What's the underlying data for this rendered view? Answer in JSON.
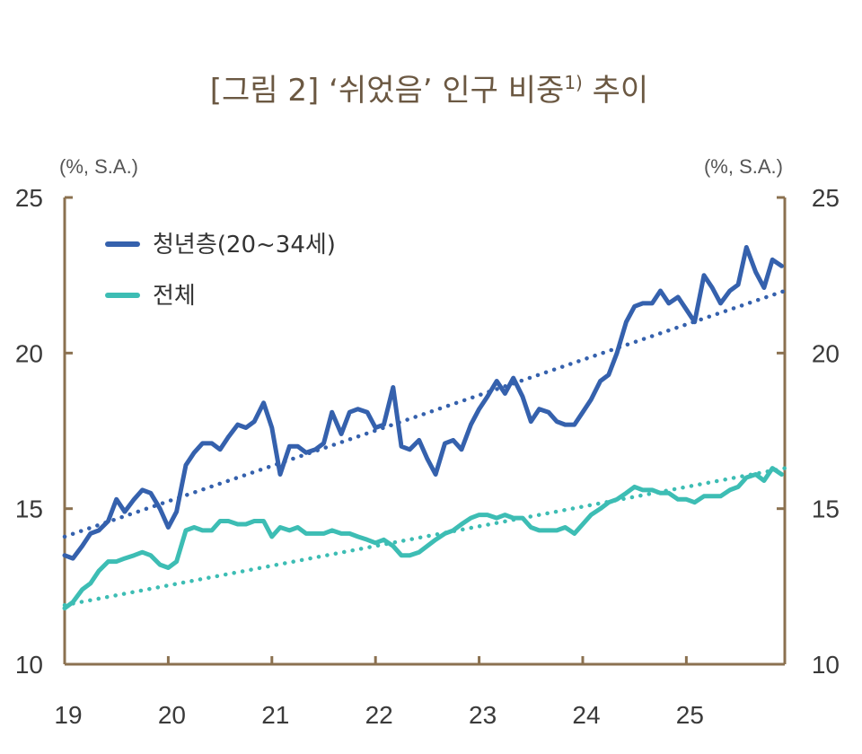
{
  "colors": {
    "title": "#6b5842",
    "axis": "#8b7150",
    "youth": "#3561ad",
    "total": "#3dbdb4",
    "text": "#3a3a3a"
  },
  "chart_data": {
    "type": "line",
    "title": "[그림 2] ‘쉬었음’ 인구 비중",
    "title_sup": "1)",
    "title_suffix": " 추이",
    "left_unit": "(%, S.A.)",
    "right_unit": "(%, S.A.)",
    "ylim": [
      10,
      25
    ],
    "y_ticks": [
      "10",
      "15",
      "20",
      "25"
    ],
    "y_ticks_right": [
      "10",
      "15",
      "20",
      "25"
    ],
    "x_range": [
      2019.0,
      2025.95
    ],
    "x_ticks": [
      {
        "x": 2019,
        "label": "19"
      },
      {
        "x": 2020,
        "label": "20"
      },
      {
        "x": 2021,
        "label": "21"
      },
      {
        "x": 2022,
        "label": "22"
      },
      {
        "x": 2023,
        "label": "23"
      },
      {
        "x": 2024,
        "label": "24"
      },
      {
        "x": 2025,
        "label": "25"
      }
    ],
    "legend": [
      "청년층(20~34세)",
      "전체"
    ],
    "series": [
      {
        "name": "청년층(20~34세)",
        "x": [
          2019.0,
          2019.08,
          2019.17,
          2019.25,
          2019.33,
          2019.42,
          2019.5,
          2019.58,
          2019.67,
          2019.75,
          2019.83,
          2019.92,
          2020.0,
          2020.08,
          2020.17,
          2020.25,
          2020.33,
          2020.42,
          2020.5,
          2020.58,
          2020.67,
          2020.75,
          2020.83,
          2020.92,
          2021.0,
          2021.08,
          2021.17,
          2021.25,
          2021.33,
          2021.42,
          2021.5,
          2021.58,
          2021.67,
          2021.75,
          2021.83,
          2021.92,
          2022.0,
          2022.08,
          2022.17,
          2022.25,
          2022.33,
          2022.42,
          2022.5,
          2022.58,
          2022.67,
          2022.75,
          2022.83,
          2022.92,
          2023.0,
          2023.08,
          2023.17,
          2023.25,
          2023.33,
          2023.42,
          2023.5,
          2023.58,
          2023.67,
          2023.75,
          2023.83,
          2023.92,
          2024.0,
          2024.08,
          2024.17,
          2024.25,
          2024.33,
          2024.42,
          2024.5,
          2024.58,
          2024.67,
          2024.75,
          2024.83,
          2024.92,
          2025.0,
          2025.08,
          2025.17,
          2025.25,
          2025.33,
          2025.42,
          2025.5,
          2025.58,
          2025.67,
          2025.75,
          2025.83,
          2025.92
        ],
        "values": [
          13.5,
          13.4,
          13.8,
          14.2,
          14.3,
          14.6,
          15.3,
          14.9,
          15.3,
          15.6,
          15.5,
          15.0,
          14.4,
          14.9,
          16.4,
          16.8,
          17.1,
          17.1,
          16.9,
          17.3,
          17.7,
          17.6,
          17.8,
          18.4,
          17.6,
          16.1,
          17.0,
          17.0,
          16.8,
          16.9,
          17.1,
          18.1,
          17.4,
          18.1,
          18.2,
          18.1,
          17.6,
          17.7,
          18.9,
          17.0,
          16.9,
          17.2,
          16.6,
          16.1,
          17.1,
          17.2,
          16.9,
          17.7,
          18.2,
          18.6,
          19.1,
          18.7,
          19.2,
          18.6,
          17.8,
          18.2,
          18.1,
          17.8,
          17.7,
          17.7,
          18.1,
          18.5,
          19.1,
          19.3,
          20.0,
          21.0,
          21.5,
          21.6,
          21.6,
          22.0,
          21.6,
          21.8,
          21.4,
          21.0,
          22.5,
          22.1,
          21.6,
          22.0,
          22.2,
          23.4,
          22.6,
          22.1,
          23.0,
          22.8
        ]
      },
      {
        "name": "전체",
        "x": [
          2019.0,
          2019.08,
          2019.17,
          2019.25,
          2019.33,
          2019.42,
          2019.5,
          2019.58,
          2019.67,
          2019.75,
          2019.83,
          2019.92,
          2020.0,
          2020.08,
          2020.17,
          2020.25,
          2020.33,
          2020.42,
          2020.5,
          2020.58,
          2020.67,
          2020.75,
          2020.83,
          2020.92,
          2021.0,
          2021.08,
          2021.17,
          2021.25,
          2021.33,
          2021.42,
          2021.5,
          2021.58,
          2021.67,
          2021.75,
          2021.83,
          2021.92,
          2022.0,
          2022.08,
          2022.17,
          2022.25,
          2022.33,
          2022.42,
          2022.5,
          2022.58,
          2022.67,
          2022.75,
          2022.83,
          2022.92,
          2023.0,
          2023.08,
          2023.17,
          2023.25,
          2023.33,
          2023.42,
          2023.5,
          2023.58,
          2023.67,
          2023.75,
          2023.83,
          2023.92,
          2024.0,
          2024.08,
          2024.17,
          2024.25,
          2024.33,
          2024.42,
          2024.5,
          2024.58,
          2024.67,
          2024.75,
          2024.83,
          2024.92,
          2025.0,
          2025.08,
          2025.17,
          2025.25,
          2025.33,
          2025.42,
          2025.5,
          2025.58,
          2025.67,
          2025.75,
          2025.83,
          2025.92
        ],
        "values": [
          11.8,
          12.0,
          12.4,
          12.6,
          13.0,
          13.3,
          13.3,
          13.4,
          13.5,
          13.6,
          13.5,
          13.2,
          13.1,
          13.3,
          14.3,
          14.4,
          14.3,
          14.3,
          14.6,
          14.6,
          14.5,
          14.5,
          14.6,
          14.6,
          14.1,
          14.4,
          14.3,
          14.4,
          14.2,
          14.2,
          14.2,
          14.3,
          14.2,
          14.2,
          14.1,
          14.0,
          13.9,
          14.0,
          13.8,
          13.5,
          13.5,
          13.6,
          13.8,
          14.0,
          14.2,
          14.3,
          14.5,
          14.7,
          14.8,
          14.8,
          14.7,
          14.8,
          14.7,
          14.7,
          14.4,
          14.3,
          14.3,
          14.3,
          14.4,
          14.2,
          14.5,
          14.8,
          15.0,
          15.2,
          15.3,
          15.5,
          15.7,
          15.6,
          15.6,
          15.5,
          15.5,
          15.3,
          15.3,
          15.2,
          15.4,
          15.4,
          15.4,
          15.6,
          15.7,
          16.0,
          16.1,
          15.9,
          16.3,
          16.1
        ]
      }
    ],
    "trendlines": [
      {
        "series": "청년층(20~34세)",
        "x": [
          2019.0,
          2025.95
        ],
        "y": [
          14.1,
          22.0
        ]
      },
      {
        "series": "전체",
        "x": [
          2019.0,
          2025.95
        ],
        "y": [
          11.9,
          16.3
        ]
      }
    ]
  }
}
